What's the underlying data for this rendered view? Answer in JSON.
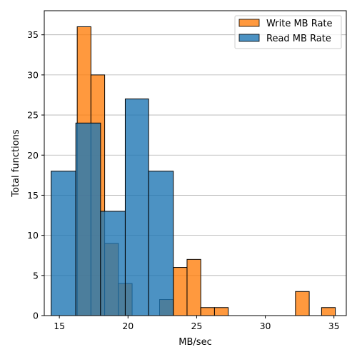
{
  "chart_data": {
    "type": "bar",
    "title": "",
    "xlabel": "MB/sec",
    "ylabel": "Total functions",
    "xlim": [
      13.9,
      35.9
    ],
    "ylim": [
      0,
      38
    ],
    "xticks": [
      15,
      20,
      25,
      30,
      35
    ],
    "yticks": [
      0,
      5,
      10,
      15,
      20,
      25,
      30,
      35
    ],
    "grid": "horizontal",
    "legend_position": "top-right",
    "series": [
      {
        "name": "Write MB Rate",
        "color": "#ff7f0e",
        "bins": [
          {
            "x0": 16.3,
            "x1": 17.3,
            "count": 36
          },
          {
            "x0": 17.3,
            "x1": 18.3,
            "count": 30
          },
          {
            "x0": 18.3,
            "x1": 19.3,
            "count": 9
          },
          {
            "x0": 19.3,
            "x1": 20.3,
            "count": 4
          },
          {
            "x0": 22.3,
            "x1": 23.3,
            "count": 2
          },
          {
            "x0": 23.3,
            "x1": 24.3,
            "count": 6
          },
          {
            "x0": 24.3,
            "x1": 25.3,
            "count": 7
          },
          {
            "x0": 25.3,
            "x1": 26.3,
            "count": 1
          },
          {
            "x0": 26.3,
            "x1": 27.3,
            "count": 1
          },
          {
            "x0": 32.2,
            "x1": 33.2,
            "count": 3
          },
          {
            "x0": 34.1,
            "x1": 35.1,
            "count": 1
          }
        ]
      },
      {
        "name": "Read MB Rate",
        "color": "#1f77b4",
        "bins": [
          {
            "x0": 14.4,
            "x1": 16.2,
            "count": 18
          },
          {
            "x0": 16.2,
            "x1": 18.0,
            "count": 24
          },
          {
            "x0": 18.0,
            "x1": 19.8,
            "count": 13
          },
          {
            "x0": 19.8,
            "x1": 21.5,
            "count": 27
          },
          {
            "x0": 21.5,
            "x1": 23.3,
            "count": 18
          }
        ]
      }
    ]
  }
}
